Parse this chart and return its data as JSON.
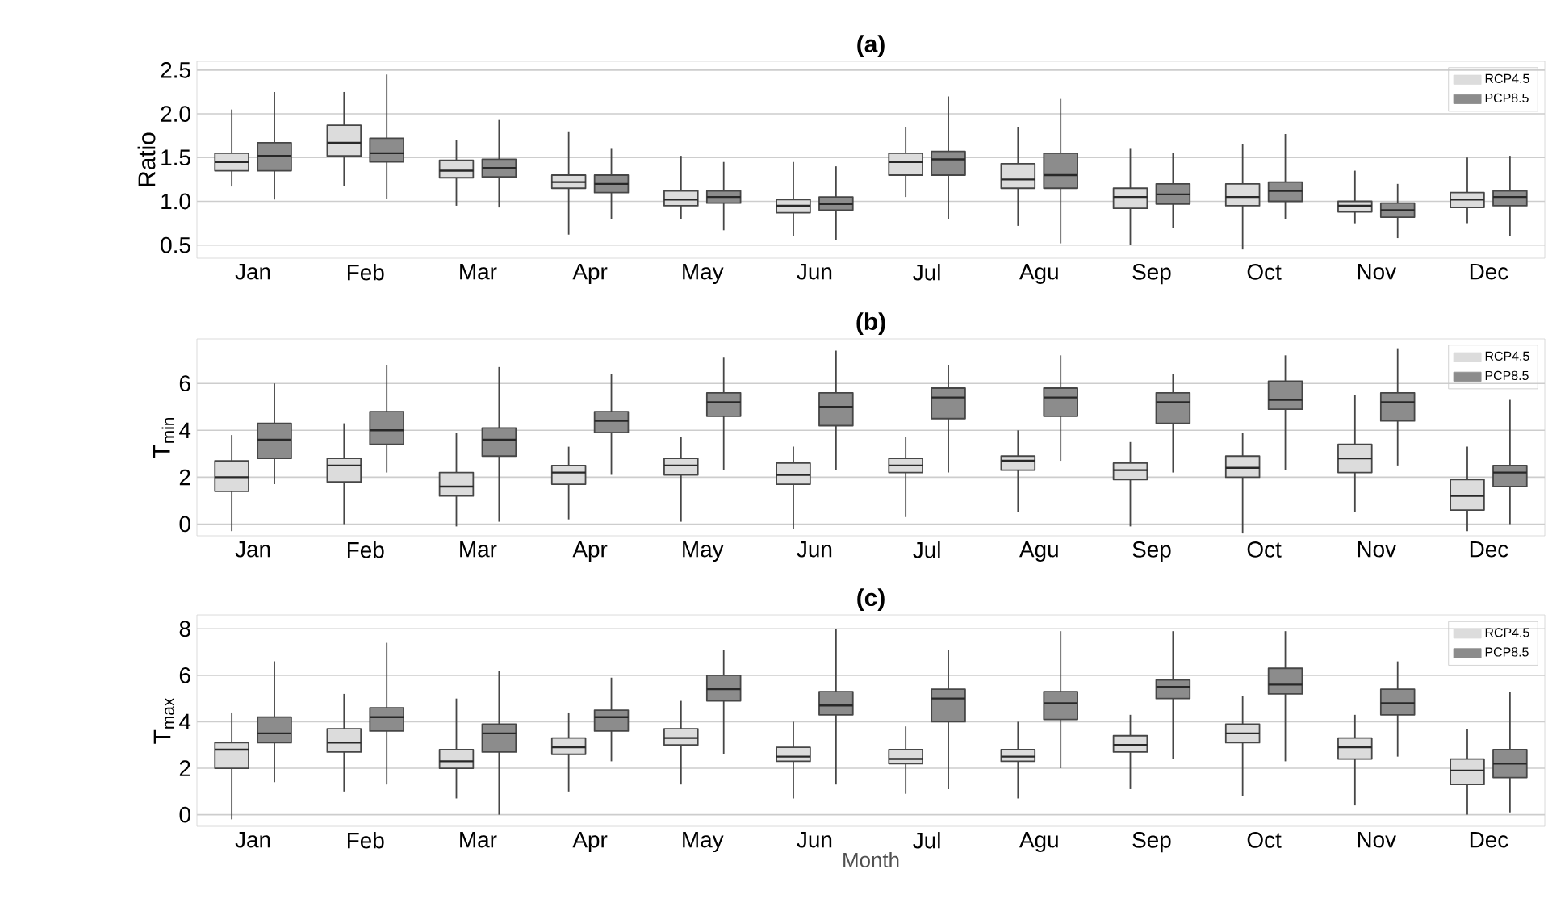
{
  "chart_data": [
    {
      "type": "box",
      "title": "(a)",
      "ylabel": "Ratio",
      "categories": [
        "Jan",
        "Feb",
        "Mar",
        "Apr",
        "May",
        "Jun",
        "Jul",
        "Agu",
        "Sep",
        "Oct",
        "Nov",
        "Dec"
      ],
      "ylim": [
        0.35,
        2.6
      ],
      "yticks": [
        {
          "value": 0.5,
          "label": "0.5"
        },
        {
          "value": 1,
          "label": "1.0"
        },
        {
          "value": 1.5,
          "label": "1.5"
        },
        {
          "value": 2,
          "label": "2.0"
        },
        {
          "value": 2.5,
          "label": "2.5"
        }
      ],
      "grid": "y",
      "legend": "top right",
      "series": [
        {
          "name": "RCP4.5",
          "color": "#dcdcdc",
          "boxes": [
            {
              "low": 1.17,
              "q1": 1.35,
              "median": 1.45,
              "q3": 1.55,
              "high": 2.05
            },
            {
              "low": 1.18,
              "q1": 1.52,
              "median": 1.67,
              "q3": 1.87,
              "high": 2.25
            },
            {
              "low": 0.95,
              "q1": 1.27,
              "median": 1.35,
              "q3": 1.47,
              "high": 1.7
            },
            {
              "low": 0.62,
              "q1": 1.15,
              "median": 1.22,
              "q3": 1.3,
              "high": 1.8
            },
            {
              "low": 0.8,
              "q1": 0.95,
              "median": 1.02,
              "q3": 1.12,
              "high": 1.52
            },
            {
              "low": 0.6,
              "q1": 0.87,
              "median": 0.95,
              "q3": 1.02,
              "high": 1.45
            },
            {
              "low": 1.05,
              "q1": 1.3,
              "median": 1.45,
              "q3": 1.55,
              "high": 1.85
            },
            {
              "low": 0.72,
              "q1": 1.15,
              "median": 1.25,
              "q3": 1.43,
              "high": 1.85
            },
            {
              "low": 0.5,
              "q1": 0.92,
              "median": 1.05,
              "q3": 1.15,
              "high": 1.6
            },
            {
              "low": 0.45,
              "q1": 0.95,
              "median": 1.05,
              "q3": 1.2,
              "high": 1.65
            },
            {
              "low": 0.75,
              "q1": 0.88,
              "median": 0.95,
              "q3": 1.0,
              "high": 1.35
            },
            {
              "low": 0.75,
              "q1": 0.93,
              "median": 1.02,
              "q3": 1.1,
              "high": 1.5
            }
          ]
        },
        {
          "name": "PCP8.5",
          "color": "#8c8c8c",
          "boxes": [
            {
              "low": 1.02,
              "q1": 1.35,
              "median": 1.52,
              "q3": 1.67,
              "high": 2.25
            },
            {
              "low": 1.03,
              "q1": 1.45,
              "median": 1.55,
              "q3": 1.72,
              "high": 2.45
            },
            {
              "low": 0.93,
              "q1": 1.28,
              "median": 1.38,
              "q3": 1.48,
              "high": 1.93
            },
            {
              "low": 0.8,
              "q1": 1.1,
              "median": 1.2,
              "q3": 1.3,
              "high": 1.6
            },
            {
              "low": 0.67,
              "q1": 0.98,
              "median": 1.05,
              "q3": 1.12,
              "high": 1.45
            },
            {
              "low": 0.56,
              "q1": 0.9,
              "median": 0.97,
              "q3": 1.05,
              "high": 1.4
            },
            {
              "low": 0.8,
              "q1": 1.3,
              "median": 1.48,
              "q3": 1.57,
              "high": 2.2
            },
            {
              "low": 0.52,
              "q1": 1.15,
              "median": 1.3,
              "q3": 1.55,
              "high": 2.17
            },
            {
              "low": 0.7,
              "q1": 0.97,
              "median": 1.08,
              "q3": 1.2,
              "high": 1.55
            },
            {
              "low": 0.8,
              "q1": 1.0,
              "median": 1.12,
              "q3": 1.22,
              "high": 1.77
            },
            {
              "low": 0.58,
              "q1": 0.82,
              "median": 0.9,
              "q3": 0.98,
              "high": 1.2
            },
            {
              "low": 0.6,
              "q1": 0.95,
              "median": 1.05,
              "q3": 1.12,
              "high": 1.52
            }
          ]
        }
      ]
    },
    {
      "type": "box",
      "title": "(b)",
      "ylabel": "T$_{min}$",
      "categories": [
        "Jan",
        "Feb",
        "Mar",
        "Apr",
        "May",
        "Jun",
        "Jul",
        "Agu",
        "Sep",
        "Oct",
        "Nov",
        "Dec"
      ],
      "ylim": [
        -0.5,
        7.9
      ],
      "yticks": [
        0,
        2,
        4,
        6
      ],
      "grid": "y",
      "legend": "top right",
      "series": [
        {
          "name": "RCP4.5",
          "color": "#dcdcdc",
          "boxes": [
            {
              "low": -0.3,
              "q1": 1.4,
              "median": 2.0,
              "q3": 2.7,
              "high": 3.8
            },
            {
              "low": 0.0,
              "q1": 1.8,
              "median": 2.5,
              "q3": 2.8,
              "high": 4.3
            },
            {
              "low": -0.1,
              "q1": 1.2,
              "median": 1.6,
              "q3": 2.2,
              "high": 3.9
            },
            {
              "low": 0.2,
              "q1": 1.7,
              "median": 2.2,
              "q3": 2.5,
              "high": 3.3
            },
            {
              "low": 0.1,
              "q1": 2.1,
              "median": 2.5,
              "q3": 2.8,
              "high": 3.7
            },
            {
              "low": -0.2,
              "q1": 1.7,
              "median": 2.1,
              "q3": 2.6,
              "high": 3.3
            },
            {
              "low": 0.3,
              "q1": 2.2,
              "median": 2.5,
              "q3": 2.8,
              "high": 3.7
            },
            {
              "low": 0.5,
              "q1": 2.3,
              "median": 2.7,
              "q3": 2.9,
              "high": 4.0
            },
            {
              "low": -0.1,
              "q1": 1.9,
              "median": 2.3,
              "q3": 2.6,
              "high": 3.5
            },
            {
              "low": -0.4,
              "q1": 2.0,
              "median": 2.4,
              "q3": 2.9,
              "high": 3.9
            },
            {
              "low": 0.5,
              "q1": 2.2,
              "median": 2.8,
              "q3": 3.4,
              "high": 5.5
            },
            {
              "low": -0.3,
              "q1": 0.6,
              "median": 1.2,
              "q3": 1.9,
              "high": 3.3
            }
          ]
        },
        {
          "name": "PCP8.5",
          "color": "#8c8c8c",
          "boxes": [
            {
              "low": 1.7,
              "q1": 2.8,
              "median": 3.6,
              "q3": 4.3,
              "high": 6.0
            },
            {
              "low": 2.2,
              "q1": 3.4,
              "median": 4.0,
              "q3": 4.8,
              "high": 6.8
            },
            {
              "low": 0.1,
              "q1": 2.9,
              "median": 3.6,
              "q3": 4.1,
              "high": 6.7
            },
            {
              "low": 2.1,
              "q1": 3.9,
              "median": 4.4,
              "q3": 4.8,
              "high": 6.4
            },
            {
              "low": 2.3,
              "q1": 4.6,
              "median": 5.2,
              "q3": 5.6,
              "high": 7.1
            },
            {
              "low": 2.3,
              "q1": 4.2,
              "median": 5.0,
              "q3": 5.6,
              "high": 7.4
            },
            {
              "low": 2.2,
              "q1": 4.5,
              "median": 5.4,
              "q3": 5.8,
              "high": 6.8
            },
            {
              "low": 2.7,
              "q1": 4.6,
              "median": 5.4,
              "q3": 5.8,
              "high": 7.2
            },
            {
              "low": 2.2,
              "q1": 4.3,
              "median": 5.2,
              "q3": 5.6,
              "high": 6.4
            },
            {
              "low": 2.3,
              "q1": 4.9,
              "median": 5.3,
              "q3": 6.1,
              "high": 7.2
            },
            {
              "low": 2.5,
              "q1": 4.4,
              "median": 5.2,
              "q3": 5.6,
              "high": 7.5
            },
            {
              "low": 0.0,
              "q1": 1.6,
              "median": 2.2,
              "q3": 2.5,
              "high": 5.3
            }
          ]
        }
      ]
    },
    {
      "type": "box",
      "title": "(c)",
      "xlabel": "Month",
      "ylabel": "T$_{max}$",
      "categories": [
        "Jan",
        "Feb",
        "Mar",
        "Apr",
        "May",
        "Jun",
        "Jul",
        "Agu",
        "Sep",
        "Oct",
        "Nov",
        "Dec"
      ],
      "ylim": [
        -0.5,
        8.6
      ],
      "yticks": [
        0,
        2,
        4,
        6,
        8
      ],
      "grid": "y",
      "legend": "top right",
      "series": [
        {
          "name": "RCP4.5",
          "color": "#dcdcdc",
          "boxes": [
            {
              "low": -0.2,
              "q1": 2.0,
              "median": 2.8,
              "q3": 3.1,
              "high": 4.4
            },
            {
              "low": 1.0,
              "q1": 2.7,
              "median": 3.1,
              "q3": 3.7,
              "high": 5.2
            },
            {
              "low": 0.7,
              "q1": 2.0,
              "median": 2.3,
              "q3": 2.8,
              "high": 5.0
            },
            {
              "low": 1.0,
              "q1": 2.6,
              "median": 2.9,
              "q3": 3.3,
              "high": 4.4
            },
            {
              "low": 1.3,
              "q1": 3.0,
              "median": 3.3,
              "q3": 3.7,
              "high": 4.9
            },
            {
              "low": 0.7,
              "q1": 2.3,
              "median": 2.5,
              "q3": 2.9,
              "high": 4.0
            },
            {
              "low": 0.9,
              "q1": 2.2,
              "median": 2.4,
              "q3": 2.8,
              "high": 3.8
            },
            {
              "low": 0.7,
              "q1": 2.3,
              "median": 2.5,
              "q3": 2.8,
              "high": 4.0
            },
            {
              "low": 1.1,
              "q1": 2.7,
              "median": 3.0,
              "q3": 3.4,
              "high": 4.3
            },
            {
              "low": 0.8,
              "q1": 3.1,
              "median": 3.5,
              "q3": 3.9,
              "high": 5.1
            },
            {
              "low": 0.4,
              "q1": 2.4,
              "median": 2.9,
              "q3": 3.3,
              "high": 4.3
            },
            {
              "low": 0.0,
              "q1": 1.3,
              "median": 1.9,
              "q3": 2.4,
              "high": 3.7
            }
          ]
        },
        {
          "name": "PCP8.5",
          "color": "#8c8c8c",
          "boxes": [
            {
              "low": 1.4,
              "q1": 3.1,
              "median": 3.5,
              "q3": 4.2,
              "high": 6.6
            },
            {
              "low": 1.3,
              "q1": 3.6,
              "median": 4.2,
              "q3": 4.6,
              "high": 7.4
            },
            {
              "low": 0.0,
              "q1": 2.7,
              "median": 3.5,
              "q3": 3.9,
              "high": 6.2
            },
            {
              "low": 2.3,
              "q1": 3.6,
              "median": 4.2,
              "q3": 4.5,
              "high": 5.9
            },
            {
              "low": 2.6,
              "q1": 4.9,
              "median": 5.4,
              "q3": 6.0,
              "high": 7.1
            },
            {
              "low": 1.3,
              "q1": 4.3,
              "median": 4.7,
              "q3": 5.3,
              "high": 8.0
            },
            {
              "low": 1.1,
              "q1": 4.0,
              "median": 5.0,
              "q3": 5.4,
              "high": 7.1
            },
            {
              "low": 2.0,
              "q1": 4.1,
              "median": 4.8,
              "q3": 5.3,
              "high": 7.9
            },
            {
              "low": 2.4,
              "q1": 5.0,
              "median": 5.5,
              "q3": 5.8,
              "high": 7.9
            },
            {
              "low": 2.3,
              "q1": 5.2,
              "median": 5.6,
              "q3": 6.3,
              "high": 7.9
            },
            {
              "low": 2.5,
              "q1": 4.3,
              "median": 4.8,
              "q3": 5.4,
              "high": 6.6
            },
            {
              "low": 0.1,
              "q1": 1.6,
              "median": 2.2,
              "q3": 2.8,
              "high": 5.3
            }
          ]
        }
      ]
    }
  ]
}
